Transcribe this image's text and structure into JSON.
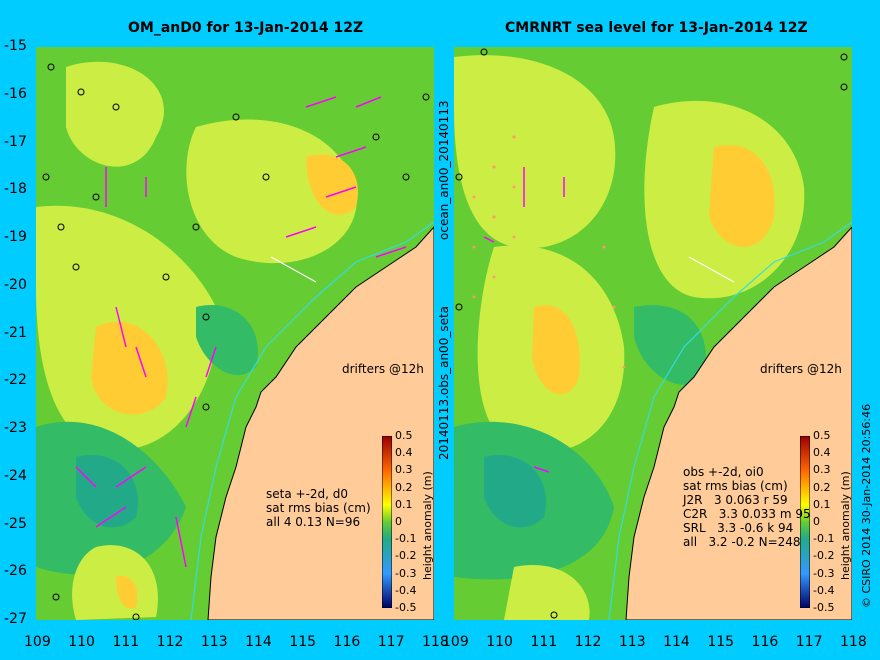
{
  "left_panel": {
    "title": "OM_anD0 for 13-Jan-2014 12Z",
    "drifters_label": "drifters @12h",
    "stats": [
      "seta +-2d, d0",
      "sat rms bias (cm)",
      "all 4 0.13 N=96"
    ]
  },
  "right_panel": {
    "title": "CMRNRT sea level  for 13-Jan-2014 12Z",
    "drifters_label": "drifters @12h",
    "stats": [
      "obs +-2d, oi0",
      "sat rms bias (cm)",
      "J2R   3 0.063 r 59",
      "C2R   3.3 0.033 m 95",
      "SRL   3.3 -0.6 k 94",
      "all   3.2 -0.2 N=248"
    ]
  },
  "y_ticks": [
    "-15",
    "-16",
    "-17",
    "-18",
    "-19",
    "-20",
    "-21",
    "-22",
    "-23",
    "-24",
    "-25",
    "-26",
    "-27"
  ],
  "x_ticks": [
    "109",
    "110",
    "111",
    "112",
    "113",
    "114",
    "115",
    "116",
    "117",
    "118"
  ],
  "colorbar": {
    "title": "height anomaly (m)",
    "ticks": [
      "0.5",
      "0.4",
      "0.3",
      "0.2",
      "0.1",
      "0",
      "-0.1",
      "-0.2",
      "-0.3",
      "-0.4",
      "-0.5"
    ]
  },
  "side_labels": {
    "upper": "ocean_an00_20140113",
    "lower": "20140113.obs_an00_seta",
    "copyright": "© CSIRO 2014   30-Jan-2014 20:56:46"
  },
  "colors": {
    "background": "#00ccff",
    "land": "#ffcc99",
    "ocean_green": "#66cc33",
    "ocean_yellow": "#ccee44",
    "drifter": "#ff00ff"
  }
}
